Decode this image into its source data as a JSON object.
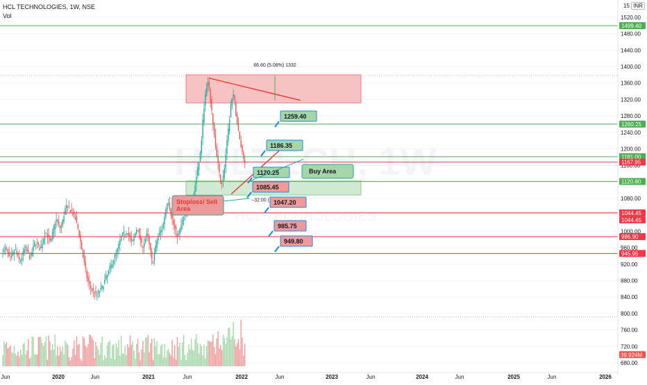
{
  "header": {
    "symbol_title": "HCL TECHNOLOGIES, 1W, NSE",
    "vol_label": "Vol",
    "currency": "INR",
    "currency_badge": "15"
  },
  "watermark": {
    "symbol": "HCLTECH, 1W",
    "name": "HCL TECHNOLOGIES"
  },
  "colors": {
    "up": "#26a69a",
    "down": "#ef5350",
    "support": "#4caf50",
    "resistance": "#f23645",
    "zone_red": "#f8b7b7",
    "zone_green": "#c8e6c9",
    "callout_green": "#a5d6a7",
    "callout_red": "#ef9a9a",
    "vol_up": "#a5d6a7",
    "vol_down": "#ef9a9a"
  },
  "chart_data": {
    "type": "candlestick",
    "title": "HCL TECHNOLOGIES, 1W, NSE",
    "xlabel": "",
    "ylabel": "",
    "x_ticks": [
      "Jun",
      "2020",
      "Jun",
      "2021",
      "Jun",
      "2022",
      "Jun",
      "2023",
      "Jun",
      "2024",
      "Jun",
      "2025",
      "Jun",
      "2026"
    ],
    "y_ticks": [
      680,
      720,
      760,
      800,
      840,
      880,
      920,
      960,
      1000,
      1040,
      1080,
      1120,
      1160,
      1200,
      1240,
      1280,
      1320,
      1360,
      1400,
      1440,
      1480,
      1520
    ],
    "ylim": [
      660,
      1545
    ],
    "price_path": [
      {
        "t": 0,
        "p": 945
      },
      {
        "t": 3,
        "p": 960
      },
      {
        "t": 6,
        "p": 930
      },
      {
        "t": 10,
        "p": 955
      },
      {
        "t": 14,
        "p": 925
      },
      {
        "t": 18,
        "p": 960
      },
      {
        "t": 22,
        "p": 935
      },
      {
        "t": 26,
        "p": 975
      },
      {
        "t": 30,
        "p": 955
      },
      {
        "t": 34,
        "p": 1000
      },
      {
        "t": 38,
        "p": 970
      },
      {
        "t": 42,
        "p": 1030
      },
      {
        "t": 46,
        "p": 1005
      },
      {
        "t": 50,
        "p": 1060
      },
      {
        "t": 54,
        "p": 1050
      },
      {
        "t": 57,
        "p": 1035
      },
      {
        "t": 60,
        "p": 1000
      },
      {
        "t": 64,
        "p": 930
      },
      {
        "t": 67,
        "p": 880
      },
      {
        "t": 70,
        "p": 860
      },
      {
        "t": 74,
        "p": 845
      },
      {
        "t": 78,
        "p": 860
      },
      {
        "t": 82,
        "p": 890
      },
      {
        "t": 86,
        "p": 920
      },
      {
        "t": 90,
        "p": 950
      },
      {
        "t": 94,
        "p": 990
      },
      {
        "t": 98,
        "p": 1000
      },
      {
        "t": 102,
        "p": 970
      },
      {
        "t": 106,
        "p": 1010
      },
      {
        "t": 110,
        "p": 960
      },
      {
        "t": 114,
        "p": 995
      },
      {
        "t": 118,
        "p": 920
      },
      {
        "t": 122,
        "p": 985
      },
      {
        "t": 126,
        "p": 1010
      },
      {
        "t": 130,
        "p": 1080
      },
      {
        "t": 134,
        "p": 1020
      },
      {
        "t": 138,
        "p": 985
      },
      {
        "t": 142,
        "p": 1030
      },
      {
        "t": 146,
        "p": 1060
      },
      {
        "t": 150,
        "p": 1085
      },
      {
        "t": 153,
        "p": 1140
      },
      {
        "t": 156,
        "p": 1200
      },
      {
        "t": 158,
        "p": 1290
      },
      {
        "t": 160,
        "p": 1340
      },
      {
        "t": 162,
        "p": 1365
      },
      {
        "t": 164,
        "p": 1300
      },
      {
        "t": 166,
        "p": 1250
      },
      {
        "t": 168,
        "p": 1190
      },
      {
        "t": 170,
        "p": 1150
      },
      {
        "t": 172,
        "p": 1110
      },
      {
        "t": 174,
        "p": 1140
      },
      {
        "t": 176,
        "p": 1200
      },
      {
        "t": 178,
        "p": 1260
      },
      {
        "t": 180,
        "p": 1320
      },
      {
        "t": 182,
        "p": 1330
      },
      {
        "t": 184,
        "p": 1270
      },
      {
        "t": 186,
        "p": 1230
      },
      {
        "t": 188,
        "p": 1200
      },
      {
        "t": 190,
        "p": 1167.95
      }
    ],
    "last_volume": "39.924M",
    "levels": [
      {
        "price": 1499.4,
        "label": "1499.40",
        "color": "support"
      },
      {
        "price": 1260.25,
        "label": "1260.25",
        "color": "support"
      },
      {
        "price": 1181.0,
        "label": "1181.00",
        "color": "support"
      },
      {
        "price": 1167.95,
        "label": "1167.95",
        "color": "resistance"
      },
      {
        "price": 1120.8,
        "label": "1120.80",
        "color": "support"
      },
      {
        "price": 1044.45,
        "label": "1044.45",
        "color": "resistance"
      },
      {
        "price": 1044.45,
        "label": "1044.45",
        "color": "resistance"
      },
      {
        "price": 986.9,
        "label": "986.90",
        "color": "resistance"
      },
      {
        "price": 945.95,
        "label": "945.95",
        "color": "resistance"
      }
    ],
    "zones": [
      {
        "name": "resistance-zone",
        "price_top": 1380,
        "price_bottom": 1312,
        "color": "zone_red"
      },
      {
        "name": "buy-zone",
        "price_top": 1122,
        "price_bottom": 1088,
        "color": "zone_green"
      }
    ],
    "callouts": [
      {
        "text": "1259.40",
        "color": "callout_green",
        "price": 1259.4
      },
      {
        "text": "1186.35",
        "color": "callout_green",
        "price": 1186.35
      },
      {
        "text": "1120.25",
        "color": "callout_green",
        "price": 1120.25
      },
      {
        "text": "1085.45",
        "color": "callout_red",
        "price": 1085.45
      },
      {
        "text": "1047.20",
        "color": "callout_red",
        "price": 1047.2
      },
      {
        "text": "985.75",
        "color": "callout_red",
        "price": 985.75
      },
      {
        "text": "949.80",
        "color": "callout_red",
        "price": 949.8
      }
    ],
    "annotations": {
      "buy_area": "Buy Area",
      "stoploss_area": "Stoploss/ Sell\nArea",
      "measure_top": "66.60 (5.08%) 1332",
      "measure_bottom": "−32.00 (−3.06%) −40"
    }
  }
}
